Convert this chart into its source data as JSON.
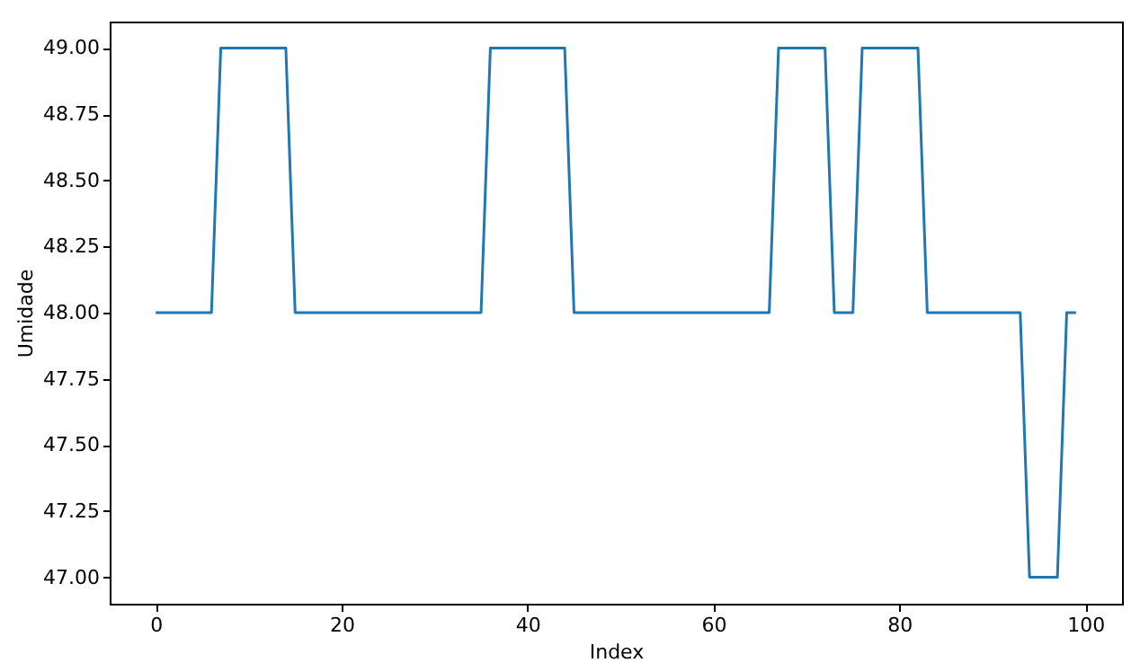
{
  "chart_data": {
    "type": "line",
    "xlabel": "Index",
    "ylabel": "Umidade",
    "x": [
      0,
      1,
      2,
      3,
      4,
      5,
      6,
      7,
      8,
      9,
      10,
      11,
      12,
      13,
      14,
      15,
      16,
      17,
      18,
      19,
      20,
      21,
      22,
      23,
      24,
      25,
      26,
      27,
      28,
      29,
      30,
      31,
      32,
      33,
      34,
      35,
      36,
      37,
      38,
      39,
      40,
      41,
      42,
      43,
      44,
      45,
      46,
      47,
      48,
      49,
      50,
      51,
      52,
      53,
      54,
      55,
      56,
      57,
      58,
      59,
      60,
      61,
      62,
      63,
      64,
      65,
      66,
      67,
      68,
      69,
      70,
      71,
      72,
      73,
      74,
      75,
      76,
      77,
      78,
      79,
      80,
      81,
      82,
      83,
      84,
      85,
      86,
      87,
      88,
      89,
      90,
      91,
      92,
      93,
      94,
      95,
      96,
      97,
      98,
      99
    ],
    "series": [
      {
        "color": "#1f77b4",
        "values": [
          48,
          48,
          48,
          48,
          48,
          48,
          48,
          49,
          49,
          49,
          49,
          49,
          49,
          49,
          49,
          48,
          48,
          48,
          48,
          48,
          48,
          48,
          48,
          48,
          48,
          48,
          48,
          48,
          48,
          48,
          48,
          48,
          48,
          48,
          48,
          48,
          49,
          49,
          49,
          49,
          49,
          49,
          49,
          49,
          49,
          48,
          48,
          48,
          48,
          48,
          48,
          48,
          48,
          48,
          48,
          48,
          48,
          48,
          48,
          48,
          48,
          48,
          48,
          48,
          48,
          48,
          48,
          49,
          49,
          49,
          49,
          49,
          49,
          48,
          48,
          48,
          49,
          49,
          49,
          49,
          49,
          49,
          49,
          48,
          48,
          48,
          48,
          48,
          48,
          48,
          48,
          48,
          48,
          48,
          47,
          47,
          47,
          47,
          48,
          48
        ]
      }
    ],
    "xlim": [
      -4.95,
      103.95
    ],
    "ylim": [
      46.9,
      49.1
    ],
    "xticks": [
      0,
      20,
      40,
      60,
      80,
      100
    ],
    "yticks": [
      {
        "value": 47,
        "label": "47.00"
      },
      {
        "value": 47.25,
        "label": "47.25"
      },
      {
        "value": 47.5,
        "label": "47.50"
      },
      {
        "value": 47.75,
        "label": "47.75"
      },
      {
        "value": 48,
        "label": "48.00"
      },
      {
        "value": 48.25,
        "label": "48.25"
      },
      {
        "value": 48.5,
        "label": "48.50"
      },
      {
        "value": 48.75,
        "label": "48.75"
      },
      {
        "value": 49,
        "label": "49.00"
      }
    ],
    "grid": false,
    "legend": false,
    "marker": "none",
    "line_style": "solid"
  }
}
